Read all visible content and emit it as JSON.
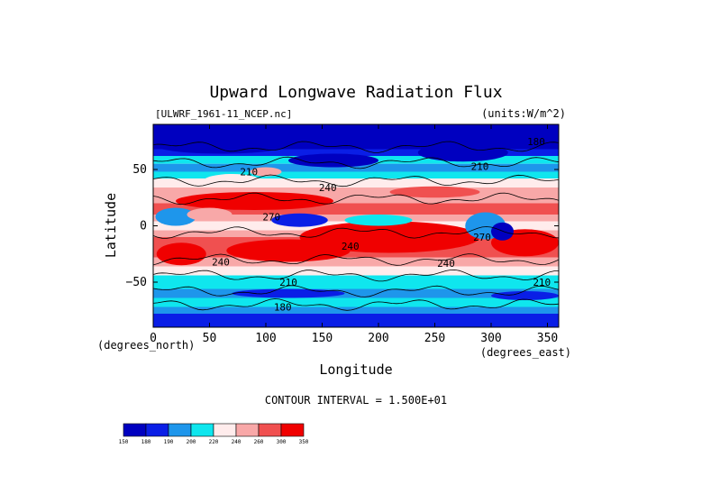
{
  "chart_data": {
    "type": "heatmap",
    "title": "Upward Longwave Radiation Flux",
    "source_label": "[ULWRF_1961-11_NCEP.nc]",
    "units_label": "(units:W/m^2)",
    "xlabel": "Longitude",
    "ylabel": "Latitude",
    "x_unit_label": "(degrees_east)",
    "y_unit_label": "(degrees_north)",
    "xlim": [
      0,
      360
    ],
    "ylim": [
      -90,
      90
    ],
    "x_ticks": [
      0,
      50,
      100,
      150,
      200,
      250,
      300,
      350
    ],
    "y_ticks": [
      -50,
      0,
      50
    ],
    "contour_interval_label": "CONTOUR INTERVAL = 1.500E+01",
    "contour_labels": [
      {
        "text": "240",
        "lon": 155,
        "lat": 34
      },
      {
        "text": "240",
        "lon": 175,
        "lat": -18
      },
      {
        "text": "240",
        "lon": 60,
        "lat": -32
      },
      {
        "text": "210",
        "lon": 120,
        "lat": -50
      },
      {
        "text": "210",
        "lon": 345,
        "lat": -50
      },
      {
        "text": "180",
        "lon": 115,
        "lat": -72
      },
      {
        "text": "210",
        "lon": 85,
        "lat": 48
      },
      {
        "text": "240",
        "lon": 260,
        "lat": -33
      },
      {
        "text": "210",
        "lon": 290,
        "lat": 53
      },
      {
        "text": "180",
        "lon": 340,
        "lat": 75
      },
      {
        "text": "270",
        "lon": 105,
        "lat": 8
      },
      {
        "text": "270",
        "lon": 292,
        "lat": -10
      }
    ],
    "colorbar": {
      "levels": [
        "150",
        "180",
        "190",
        "200",
        "220",
        "240",
        "260",
        "300",
        "350"
      ],
      "colors": [
        "#0000c0",
        "#0a1ee6",
        "#1e96eb",
        "#0fe6ee",
        "#ffecec",
        "#f8a8a8",
        "#f05050",
        "#f00000"
      ]
    },
    "grid": false,
    "legend": "none"
  }
}
